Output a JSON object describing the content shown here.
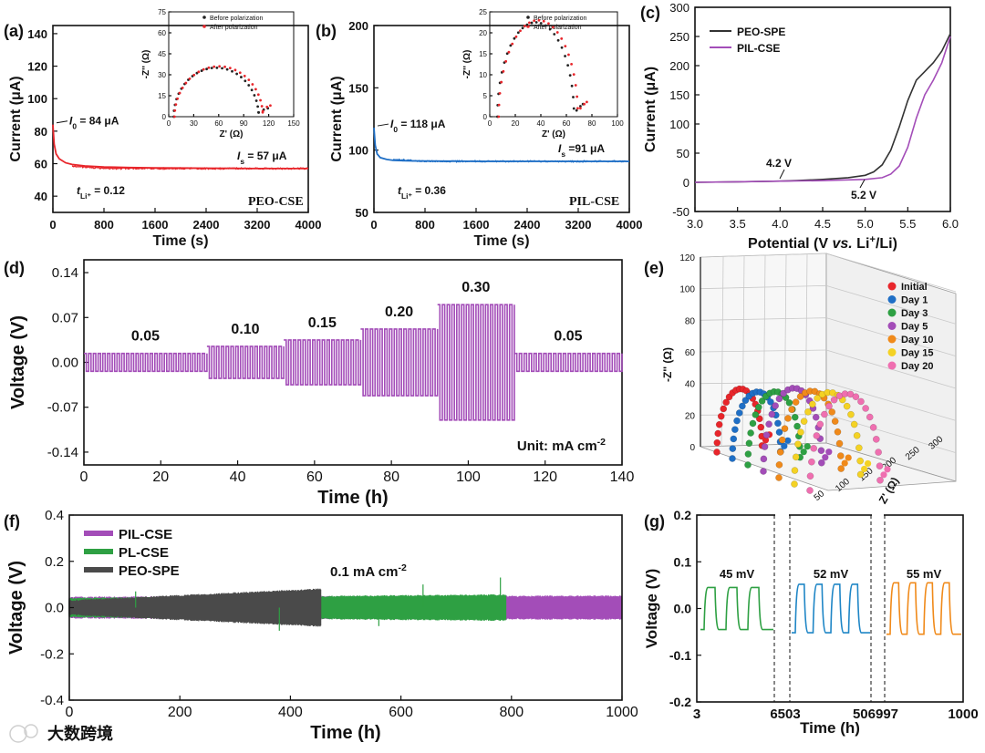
{
  "colors": {
    "red": "#e8262b",
    "blue": "#1f6fc6",
    "purple": "#a34db8",
    "green": "#2ea043",
    "gray": "#4a4a4a",
    "orange": "#f08a1a",
    "dark": "#333333",
    "pink": "#ef6fb0",
    "yellow": "#f4d224",
    "tealblue": "#1f86c6"
  },
  "watermark": "大数跨境",
  "chart_data": [
    {
      "id": "a",
      "panel_label": "(a)",
      "type": "line",
      "title": "PEO-CSE",
      "xlabel": "Time (s)",
      "ylabel": "Current (μA)",
      "xlim": [
        0,
        4000
      ],
      "ylim": [
        30,
        145
      ],
      "xticks": [
        "0",
        "800",
        "1600",
        "2400",
        "3200",
        "4000"
      ],
      "yticks": [
        "40",
        "60",
        "80",
        "100",
        "120",
        "140"
      ],
      "ann_i0_sym": "I",
      "ann_i0_sub": "0",
      "ann_i0_val": " = 84 μA",
      "ann_is_sym": "I",
      "ann_is_sub": "s",
      "ann_is_val": " = 57 μA",
      "tli_sym": "t",
      "tli_sub": "Li⁺",
      "tli_val": " = 0.12",
      "series": [
        {
          "name": "current",
          "x": [
            0,
            20,
            50,
            100,
            200,
            300,
            500,
            800,
            1200,
            1600,
            2000,
            2400,
            2800,
            3200,
            3600,
            4000
          ],
          "y": [
            84,
            72,
            66,
            63,
            60.5,
            59.5,
            58.6,
            58,
            57.6,
            57.4,
            57.3,
            57.2,
            57.1,
            57,
            57,
            57
          ]
        }
      ],
      "inset": {
        "xlabel": "Z' (Ω)",
        "ylabel": "-Z'' (Ω)",
        "xlim": [
          0,
          150
        ],
        "ylim": [
          0,
          75
        ],
        "xticks": [
          "0",
          "30",
          "60",
          "90",
          "120",
          "150"
        ],
        "yticks": [
          "0",
          "15",
          "30",
          "45",
          "60",
          "75"
        ],
        "legend": [
          "Before polarization",
          "After polarization"
        ],
        "before": {
          "center": 57,
          "radius": 51,
          "height": 35,
          "tail": [
            [
              108,
              3
            ],
            [
              114,
              5
            ],
            [
              119,
              6
            ]
          ]
        },
        "after": {
          "center": 60,
          "radius": 53,
          "height": 36,
          "tail": [
            [
              113,
              4
            ],
            [
              118,
              7
            ],
            [
              122,
              8
            ]
          ]
        }
      }
    },
    {
      "id": "b",
      "panel_label": "(b)",
      "type": "line",
      "title": "PIL-CSE",
      "xlabel": "Time (s)",
      "ylabel": "Current (μA)",
      "xlim": [
        0,
        4000
      ],
      "ylim": [
        50,
        200
      ],
      "xticks": [
        "0",
        "800",
        "1600",
        "2400",
        "3200",
        "4000"
      ],
      "yticks": [
        "50",
        "100",
        "150",
        "200"
      ],
      "ann_i0_sym": "I",
      "ann_i0_sub": "0",
      "ann_i0_val": " = 118 μA",
      "ann_is_sym": "I",
      "ann_is_sub": "s",
      "ann_is_val": " =91 μA",
      "tli_sym": "t",
      "tli_sub": "Li⁺",
      "tli_val": " = 0.36",
      "series": [
        {
          "name": "current",
          "x": [
            0,
            20,
            50,
            100,
            200,
            300,
            500,
            800,
            1200,
            1600,
            2000,
            2400,
            2800,
            3200,
            3600,
            4000
          ],
          "y": [
            118,
            104,
            97,
            94,
            92.5,
            91.8,
            91.4,
            91.2,
            91.1,
            91,
            91,
            91,
            91,
            91,
            91,
            91
          ]
        }
      ],
      "inset": {
        "xlabel": "Z' (Ω)",
        "ylabel": "-Z'' (Ω)",
        "xlim": [
          0,
          100
        ],
        "ylim": [
          0,
          25
        ],
        "xticks": [
          "0",
          "20",
          "40",
          "60",
          "80",
          "100"
        ],
        "yticks": [
          "0",
          "5",
          "10",
          "15",
          "20",
          "25"
        ],
        "legend": [
          "Before polarization",
          "After polarization"
        ],
        "before": {
          "center": 36,
          "radius": 30,
          "height": 22.5,
          "tail": [
            [
              68,
              1.5
            ],
            [
              71,
              2.5
            ],
            [
              73,
              3
            ]
          ]
        },
        "after": {
          "center": 38,
          "radius": 31,
          "height": 23,
          "tail": [
            [
              71,
              2
            ],
            [
              74,
              3
            ],
            [
              76,
              3.5
            ]
          ]
        }
      }
    },
    {
      "id": "c",
      "panel_label": "(c)",
      "type": "line",
      "xlabel_pre": "Potential (V ",
      "xlabel_vs": "vs.",
      "xlabel_post": " Li",
      "xlabel_sup": "+",
      "xlabel_end": "/Li)",
      "ylabel": "Current (μA)",
      "xlim": [
        3.0,
        6.0
      ],
      "ylim": [
        -50,
        300
      ],
      "xticks": [
        "3.0",
        "3.5",
        "4.0",
        "4.5",
        "5.0",
        "5.5",
        "6.0"
      ],
      "yticks": [
        "-50",
        "0",
        "50",
        "100",
        "150",
        "200",
        "250",
        "300"
      ],
      "ann1": "4.2 V",
      "ann2": "5.2 V",
      "series": [
        {
          "name": "PEO-SPE",
          "x": [
            3.0,
            3.5,
            4.0,
            4.2,
            4.5,
            4.8,
            5.0,
            5.1,
            5.2,
            5.3,
            5.4,
            5.5,
            5.6,
            5.7,
            5.8,
            5.9,
            6.0
          ],
          "y": [
            0,
            1,
            2,
            3,
            5,
            8,
            12,
            18,
            30,
            55,
            95,
            140,
            175,
            190,
            205,
            225,
            255
          ]
        },
        {
          "name": "PIL-CSE",
          "x": [
            3.0,
            3.5,
            4.0,
            4.5,
            5.0,
            5.2,
            5.3,
            5.4,
            5.5,
            5.6,
            5.7,
            5.8,
            5.9,
            6.0
          ],
          "y": [
            0,
            1,
            2,
            3,
            5,
            8,
            14,
            28,
            60,
            110,
            150,
            175,
            205,
            250
          ]
        }
      ]
    },
    {
      "id": "d",
      "panel_label": "(d)",
      "type": "line",
      "xlabel": "Time (h)",
      "ylabel": "Voltage (V)",
      "xlim": [
        0,
        140
      ],
      "ylim": [
        -0.16,
        0.16
      ],
      "xticks": [
        "0",
        "20",
        "40",
        "60",
        "80",
        "100",
        "120",
        "140"
      ],
      "yticks": [
        "-0.14",
        "-0.07",
        "0.00",
        "0.07",
        "0.14"
      ],
      "unit_label": "Unit: mA cm",
      "unit_sup": "-2",
      "segments": [
        {
          "label": "0.05",
          "t0": 0,
          "t1": 32,
          "amp": 0.014
        },
        {
          "label": "0.10",
          "t0": 32,
          "t1": 52,
          "amp": 0.025
        },
        {
          "label": "0.15",
          "t0": 52,
          "t1": 72,
          "amp": 0.035
        },
        {
          "label": "0.20",
          "t0": 72,
          "t1": 92,
          "amp": 0.052
        },
        {
          "label": "0.30",
          "t0": 92,
          "t1": 112,
          "amp": 0.09
        },
        {
          "label": "0.05",
          "t0": 112,
          "t1": 140,
          "amp": 0.014
        }
      ]
    },
    {
      "id": "e",
      "panel_label": "(e)",
      "type": "scatter3d",
      "zlabel": "-Z'' (Ω)",
      "xlabel": "Z' (Ω)",
      "zticks": [
        "0",
        "20",
        "40",
        "60",
        "80",
        "100",
        "120"
      ],
      "xticks": [
        "50",
        "100",
        "150",
        "200",
        "250",
        "300"
      ],
      "legend": [
        "Initial",
        "Day 1",
        "Day 3",
        "Day 5",
        "Day 10",
        "Day 15",
        "Day 20"
      ],
      "series": [
        {
          "name": "Initial",
          "radius": 45,
          "height": 38
        },
        {
          "name": "Day 1",
          "radius": 48,
          "height": 40
        },
        {
          "name": "Day 3",
          "radius": 52,
          "height": 44
        },
        {
          "name": "Day 5",
          "radius": 58,
          "height": 50
        },
        {
          "name": "Day 10",
          "radius": 62,
          "height": 52
        },
        {
          "name": "Day 15",
          "radius": 66,
          "height": 55
        },
        {
          "name": "Day 20",
          "radius": 70,
          "height": 58
        }
      ]
    },
    {
      "id": "f",
      "panel_label": "(f)",
      "type": "line",
      "xlabel": "Time (h)",
      "ylabel": "Voltage (V)",
      "xlim": [
        0,
        1000
      ],
      "ylim": [
        -0.4,
        0.4
      ],
      "xticks": [
        "0",
        "200",
        "400",
        "600",
        "800",
        "1000"
      ],
      "yticks": [
        "-0.4",
        "-0.2",
        "0.0",
        "0.2",
        "0.4"
      ],
      "annotation": "0.1 mA cm",
      "annotation_sup": "-2",
      "series": [
        {
          "name": "PIL-CSE",
          "t_end": 1000,
          "amp_start": 0.045,
          "amp_end": 0.05
        },
        {
          "name": "PL-CSE",
          "t_end": 790,
          "amp_start": 0.04,
          "amp_end": 0.055
        },
        {
          "name": "PEO-SPE",
          "t_end": 455,
          "amp_start": 0.03,
          "amp_end": 0.08
        }
      ]
    },
    {
      "id": "g",
      "panel_label": "(g)",
      "type": "line",
      "xlabel": "Time (h)",
      "ylabel": "Voltage (V)",
      "ylim": [
        -0.2,
        0.2
      ],
      "yticks": [
        "-0.2",
        "-0.1",
        "0.0",
        "0.1",
        "0.2"
      ],
      "xticks": [
        "3",
        "6503",
        "506997",
        "1000"
      ],
      "windows": [
        {
          "label": "45 mV",
          "amp": 0.045,
          "cycles": 3
        },
        {
          "label": "52 mV",
          "amp": 0.052,
          "cycles": 4
        },
        {
          "label": "55 mV",
          "amp": 0.055,
          "cycles": 4
        }
      ]
    }
  ]
}
